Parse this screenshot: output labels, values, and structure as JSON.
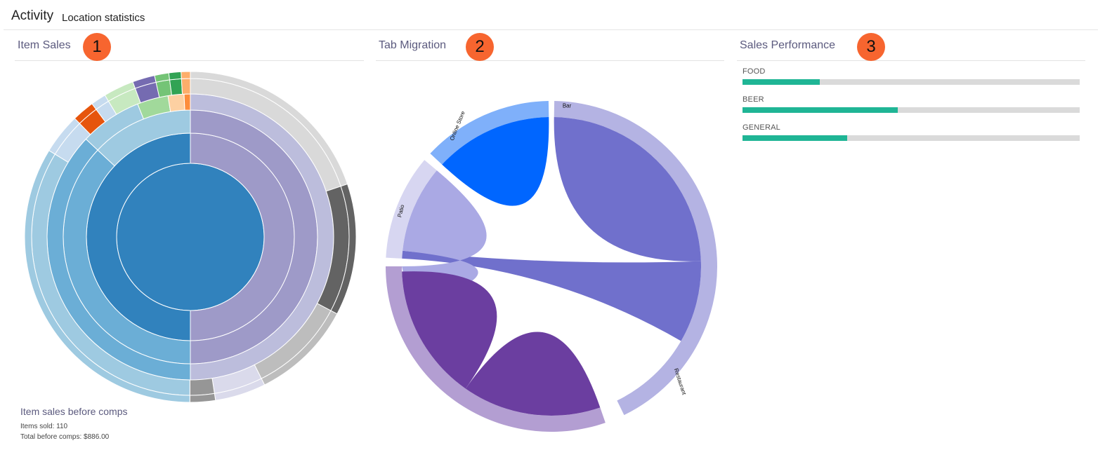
{
  "header": {
    "title": "Activity",
    "subtitle": "Location statistics"
  },
  "panels": [
    {
      "title": "Item Sales",
      "badge": "1"
    },
    {
      "title": "Tab Migration",
      "badge": "2"
    },
    {
      "title": "Sales Performance",
      "badge": "3"
    }
  ],
  "item_sales": {
    "summary_heading": "Item sales before comps",
    "items_sold_text": "Items sold: 110",
    "total_text": "Total before comps: $886.00"
  },
  "sunburst_rings": [
    [
      {
        "color": "#3182bd",
        "value": 1
      }
    ],
    [
      {
        "color": "#9e9ac8",
        "value": 50
      },
      {
        "color": "#3182bd",
        "value": 50
      }
    ],
    [
      {
        "color": "#9e9ac8",
        "value": 50
      },
      {
        "color": "#6baed6",
        "value": 37
      },
      {
        "color": "#9ecae1",
        "value": 13
      }
    ],
    [
      {
        "color": "#bcbddc",
        "value": 50
      },
      {
        "color": "#6baed6",
        "value": 37
      },
      {
        "color": "#9ecae1",
        "value": 7
      },
      {
        "color": "#a1d99b",
        "value": 3.5
      },
      {
        "color": "#fdd0a2",
        "value": 1.8
      },
      {
        "color": "#fd8d3c",
        "value": 0.7
      }
    ],
    [
      {
        "color": "#d9d9d9",
        "value": 20
      },
      {
        "color": "#636363",
        "value": 13
      },
      {
        "color": "#bdbdbd",
        "value": 10
      },
      {
        "color": "#dadaeb",
        "value": 5
      },
      {
        "color": "#969696",
        "value": 2.5
      },
      {
        "color": "#9ecae1",
        "value": 34
      },
      {
        "color": "#c6dbef",
        "value": 4
      },
      {
        "color": "#e6550d",
        "value": 2.2
      },
      {
        "color": "#c6dbef",
        "value": 1.5
      },
      {
        "color": "#c7e9c0",
        "value": 3
      },
      {
        "color": "#756bb1",
        "value": 2.2
      },
      {
        "color": "#74c476",
        "value": 1.4
      },
      {
        "color": "#31a354",
        "value": 1.2
      },
      {
        "color": "#fdae6b",
        "value": 0.9
      }
    ],
    [
      {
        "color": "#d9d9d9",
        "value": 20
      },
      {
        "color": "#636363",
        "value": 13
      },
      {
        "color": "#bdbdbd",
        "value": 10
      },
      {
        "color": "#dadaeb",
        "value": 5
      },
      {
        "color": "#969696",
        "value": 2.5
      },
      {
        "color": "#9ecae1",
        "value": 34
      },
      {
        "color": "#c6dbef",
        "value": 4
      },
      {
        "color": "#e6550d",
        "value": 2.2
      },
      {
        "color": "#c6dbef",
        "value": 1.5
      },
      {
        "color": "#c7e9c0",
        "value": 3
      },
      {
        "color": "#756bb1",
        "value": 2.2
      },
      {
        "color": "#74c476",
        "value": 1.4
      },
      {
        "color": "#31a354",
        "value": 1.2
      },
      {
        "color": "#fdae6b",
        "value": 0.9
      }
    ]
  ],
  "tab_migration": {
    "groups": [
      {
        "label": "Bar",
        "color": "#7070cc",
        "outer_color": "#b4b3e3"
      },
      {
        "label": "Restaurant",
        "color": "#6b3ea0",
        "outer_color": "#b39ed2"
      },
      {
        "label": "Patio",
        "color": "#aaa9e4",
        "outer_color": "#d7d6f1"
      },
      {
        "label": "Online Store",
        "color": "#0066ff",
        "outer_color": "#7fb0fa"
      }
    ]
  },
  "sales_performance": [
    {
      "label": "FOOD",
      "fraction": 0.23
    },
    {
      "label": "BEER",
      "fraction": 0.46
    },
    {
      "label": "GENERAL",
      "fraction": 0.31
    }
  ],
  "colors": {
    "badge": "#f7652f",
    "bar_fill": "#1fb595",
    "bar_track": "#dadada",
    "title": "#5b5a7e"
  }
}
